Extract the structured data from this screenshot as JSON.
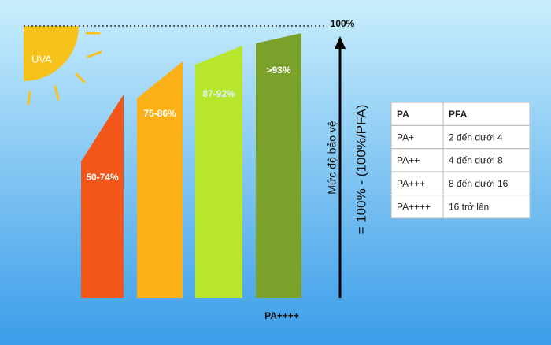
{
  "sun_label": "UVA",
  "top_label": "100%",
  "bars": [
    {
      "label": "50-74%"
    },
    {
      "label": "75-86%"
    },
    {
      "label": "87-92%"
    },
    {
      "label": ">93%"
    }
  ],
  "bottom_label": "PA++++",
  "axis_label": "Mức độ bảo vệ",
  "formula": "= 100% - (100%/PFA)",
  "table": {
    "header": [
      "PA",
      "PFA"
    ],
    "rows": [
      [
        "PA+",
        "2 đến dưới 4"
      ],
      [
        "PA++",
        "4 đến dưới 8"
      ],
      [
        "PA+++",
        "8 đến dưới 16"
      ],
      [
        "PA++++",
        "16 trở lên"
      ]
    ]
  }
}
